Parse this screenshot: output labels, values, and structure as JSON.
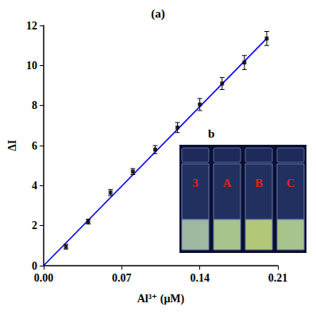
{
  "chart_data": {
    "type": "scatter",
    "title": "(a)",
    "x_label": "Al³⁺ (μM)",
    "y_label": "ΔI",
    "series": [
      {
        "type": "scatter",
        "color": "#000000",
        "marker": "square",
        "x": [
          0.02,
          0.04,
          0.06,
          0.08,
          0.1,
          0.12,
          0.14,
          0.16,
          0.18,
          0.2
        ],
        "values": [
          0.95,
          2.2,
          3.65,
          4.7,
          5.8,
          6.9,
          8.05,
          9.1,
          10.15,
          11.35
        ],
        "errors": [
          0.12,
          0.12,
          0.15,
          0.15,
          0.2,
          0.25,
          0.3,
          0.3,
          0.35,
          0.35
        ]
      },
      {
        "type": "line",
        "color": "#0000ff",
        "line_style": "solid",
        "x": [
          0,
          0.2
        ],
        "values": [
          0,
          11.35
        ]
      }
    ],
    "xlim": [
      0,
      0.21
    ],
    "xticks": [
      {
        "value": 0,
        "label": "0.00"
      },
      0.07,
      0.14,
      0.21
    ],
    "ylim": [
      0,
      12
    ],
    "yticks": [
      0,
      2,
      4,
      6,
      8,
      10,
      12
    ],
    "grid": false,
    "annotations": [
      "b",
      "3",
      "A",
      "B",
      "C"
    ]
  }
}
